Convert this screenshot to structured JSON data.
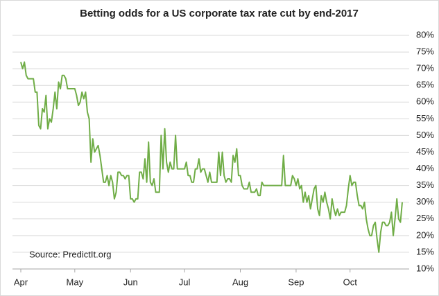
{
  "chart_data": {
    "type": "line",
    "title": "Betting odds for a US corporate tax rate cut by end-2017",
    "annotation": "Source:   PredictIt.org",
    "categories": [
      "Apr",
      null,
      null,
      null,
      null,
      null,
      null,
      null,
      null,
      null,
      null,
      null,
      null,
      null,
      null,
      null,
      null,
      null,
      null,
      null,
      null,
      null,
      null,
      null,
      null,
      null,
      null,
      null,
      null,
      null,
      "May",
      null,
      null,
      null,
      null,
      null,
      null,
      null,
      null,
      null,
      null,
      null,
      null,
      null,
      null,
      null,
      null,
      null,
      null,
      null,
      null,
      null,
      null,
      null,
      null,
      null,
      null,
      null,
      null,
      null,
      null,
      "Jun",
      null,
      null,
      null,
      null,
      null,
      null,
      null,
      null,
      null,
      null,
      null,
      null,
      null,
      null,
      null,
      null,
      null,
      null,
      null,
      null,
      null,
      null,
      null,
      null,
      null,
      null,
      null,
      null,
      null,
      "Jul",
      null,
      null,
      null,
      null,
      null,
      null,
      null,
      null,
      null,
      null,
      null,
      null,
      null,
      null,
      null,
      null,
      null,
      null,
      null,
      null,
      null,
      null,
      null,
      null,
      null,
      null,
      null,
      null,
      null,
      null,
      "Aug",
      null,
      null,
      null,
      null,
      null,
      null,
      null,
      null,
      null,
      null,
      null,
      null,
      null,
      null,
      null,
      null,
      null,
      null,
      null,
      null,
      null,
      null,
      null,
      null,
      null,
      null,
      null,
      null,
      null,
      null,
      "Sep",
      null,
      null,
      null,
      null,
      null,
      null,
      null,
      null,
      null,
      null,
      null,
      null,
      null,
      null,
      null,
      null,
      null,
      null,
      null,
      null,
      null,
      null,
      null,
      null,
      null,
      null,
      null,
      null,
      null,
      "Oct",
      null,
      null,
      null,
      null,
      null,
      null,
      null,
      null,
      null,
      null,
      null,
      null,
      null,
      null,
      null,
      null,
      null,
      null,
      null,
      null,
      null,
      null,
      null,
      null,
      null,
      null,
      null,
      null,
      null
    ],
    "values": [
      72,
      70,
      72,
      68,
      67,
      67,
      67,
      67,
      63,
      63,
      53,
      52,
      58,
      57,
      62,
      52,
      55,
      54,
      58,
      63,
      58,
      66,
      64,
      68,
      68,
      67,
      64,
      64,
      64,
      64,
      64,
      62,
      59,
      60,
      63,
      61,
      63,
      57,
      55,
      42,
      49,
      45,
      46,
      47,
      44,
      40,
      36,
      36,
      38,
      35,
      38,
      36,
      31,
      33,
      39,
      39,
      38,
      38,
      37,
      38,
      38,
      31,
      31,
      30,
      31,
      31,
      39,
      39,
      37,
      43,
      36,
      48,
      36,
      35,
      37,
      33,
      33,
      33,
      50,
      40,
      52,
      42,
      39,
      42,
      40,
      40,
      50,
      40,
      40,
      40,
      40,
      40,
      42,
      38,
      38,
      36,
      36,
      40,
      40,
      43,
      39,
      40,
      40,
      38,
      36,
      39,
      36,
      36,
      36,
      36,
      45,
      38,
      45,
      38,
      36,
      37,
      37,
      36,
      44,
      42,
      46,
      38,
      38,
      35,
      34,
      34,
      34,
      36,
      33,
      33,
      33,
      34,
      32,
      32,
      36,
      35,
      35,
      35,
      35,
      35,
      35,
      35,
      35,
      35,
      35,
      35,
      44,
      35,
      35,
      35,
      35,
      38,
      37,
      35,
      37,
      34,
      35,
      30,
      33,
      30,
      32,
      28,
      31,
      34,
      35,
      28,
      26,
      32,
      30,
      33,
      30,
      28,
      25,
      31,
      28,
      26,
      28,
      26,
      27,
      27,
      27,
      29,
      34,
      38,
      35,
      36,
      36,
      32,
      29,
      29,
      28,
      30,
      25,
      22,
      20,
      20,
      23,
      24,
      19,
      15,
      21,
      24,
      24,
      23,
      23,
      24,
      27,
      20,
      25,
      31,
      25,
      24,
      30
    ],
    "color": "#70ad47",
    "ylim": [
      10,
      80
    ],
    "yticks": [
      {
        "value": 10,
        "label": "10%"
      },
      {
        "value": 15,
        "label": "15%"
      },
      {
        "value": 20,
        "label": "20%"
      },
      {
        "value": 25,
        "label": "25%"
      },
      {
        "value": 30,
        "label": "30%"
      },
      {
        "value": 35,
        "label": "35%"
      },
      {
        "value": 40,
        "label": "40%"
      },
      {
        "value": 45,
        "label": "45%"
      },
      {
        "value": 50,
        "label": "50%"
      },
      {
        "value": 55,
        "label": "55%"
      },
      {
        "value": 60,
        "label": "60%"
      },
      {
        "value": 65,
        "label": "65%"
      },
      {
        "value": 70,
        "label": "70%"
      },
      {
        "value": 75,
        "label": "75%"
      },
      {
        "value": 80,
        "label": "80%"
      }
    ],
    "grid": true
  }
}
